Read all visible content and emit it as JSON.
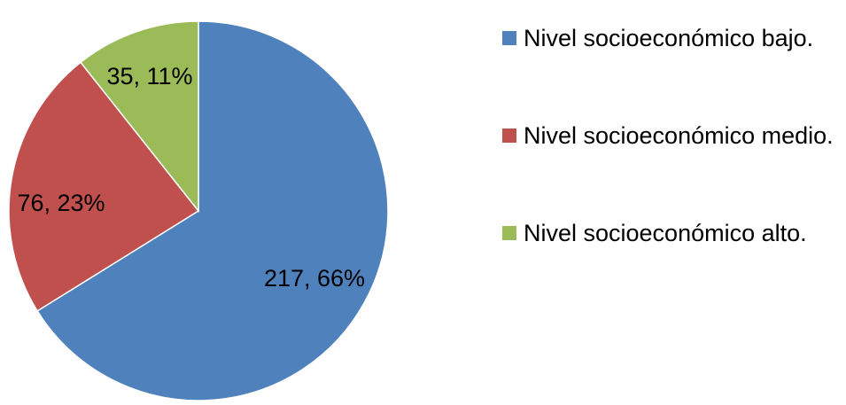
{
  "chart_data": {
    "type": "pie",
    "slices": [
      {
        "label": "Nivel socioeconómico bajo.",
        "value": 217,
        "percent": 66,
        "color": "#4F81BD",
        "data_label": "217, 66%"
      },
      {
        "label": "Nivel socioeconómico medio.",
        "value": 76,
        "percent": 23,
        "color": "#C0504D",
        "data_label": "76, 23%"
      },
      {
        "label": "Nivel socioeconómico alto.",
        "value": 35,
        "percent": 11,
        "color": "#9BBB59",
        "data_label": "35, 11%"
      }
    ],
    "legend": {
      "position": "right",
      "entries": [
        "Nivel socioeconómico bajo.",
        "Nivel socioeconómico medio.",
        "Nivel socioeconómico alto."
      ]
    },
    "start_angle_deg": 0,
    "direction": "clockwise"
  }
}
